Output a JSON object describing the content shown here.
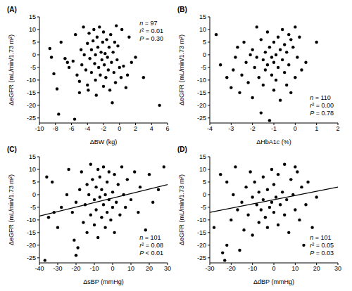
{
  "chart_data": [
    {
      "type": "scatter",
      "title": "(A)",
      "x_label": "ΔBW (kg)",
      "y_label": "ΔeGFR (mL/min/1.73 m²)",
      "color": "#000000",
      "marker": "circle",
      "xlim": [
        -10,
        6
      ],
      "xticks": [
        -10,
        -8,
        -6,
        -4,
        -2,
        0,
        2,
        4,
        6
      ],
      "ylim": [
        -27,
        15
      ],
      "yticks": [
        -25,
        -20,
        -15,
        -10,
        -5,
        0,
        5,
        10,
        15
      ],
      "annotations": [
        "n = 97",
        "r² = 0.01",
        "P = 0.30"
      ],
      "x": [
        -8.7,
        -8.2,
        -8.5,
        -7.8,
        -7.6,
        -7.3,
        -6.8,
        -6.5,
        -6.3,
        -5.8,
        -5.6,
        -5.5,
        -5.3,
        -5,
        -5,
        -4.8,
        -4.7,
        -4.5,
        -4.4,
        -4.2,
        -4,
        -4,
        -3.9,
        -3.8,
        -3.7,
        -3.5,
        -3.5,
        -3.3,
        -3.2,
        -3.1,
        -3,
        -3,
        -2.9,
        -2.8,
        -2.7,
        -2.6,
        -2.5,
        -2.4,
        -2.3,
        -2.2,
        -2.1,
        -2,
        -2,
        -1.9,
        -1.8,
        -1.7,
        -1.6,
        -1.5,
        -1.4,
        -1.3,
        -1.2,
        -1.1,
        -1,
        -0.9,
        -0.8,
        -0.7,
        -0.6,
        -0.5,
        -0.4,
        -0.3,
        -0.2,
        0,
        0.2,
        0.3,
        0.5,
        0.8,
        1,
        1.2,
        1.5,
        2,
        3,
        5
      ],
      "y": [
        2.5,
        -7.5,
        -1,
        -13.5,
        -23.5,
        5,
        -1.5,
        -3,
        -5,
        -2.5,
        -25.5,
        8,
        -8,
        -15,
        -10.5,
        2,
        -4,
        11,
        0,
        -6,
        4.5,
        -12,
        -14,
        8.5,
        -1.5,
        2,
        -7,
        5.5,
        10,
        -3.5,
        -10,
        0,
        -16,
        7,
        3,
        -5,
        11,
        -8,
        1,
        -2,
        5,
        -12.5,
        9,
        -4,
        0.5,
        -9,
        6,
        -1,
        -6,
        3,
        -14,
        8,
        -3,
        -19,
        1,
        -7,
        5,
        -11,
        11.5,
        -2,
        3.5,
        -5,
        -9,
        10,
        -4.5,
        -13,
        -8,
        7,
        -3,
        -1,
        -9,
        -20
      ]
    },
    {
      "type": "scatter",
      "title": "(B)",
      "x_label": "ΔHbA1c (%)",
      "y_label": "ΔeGFR (mL/min/1.73 m²)",
      "color": "#000000",
      "marker": "circle",
      "xlim": [
        -4,
        2
      ],
      "xticks": [
        -4,
        -3,
        -2,
        -1,
        0,
        1,
        2
      ],
      "ylim": [
        -27,
        15
      ],
      "yticks": [
        -25,
        -20,
        -15,
        -10,
        -5,
        0,
        5,
        10,
        15
      ],
      "annotations": [
        "n = 110",
        "r² = 0.00",
        "P = 0.78"
      ],
      "x": [
        -3.7,
        -3.5,
        -3.2,
        -3,
        -2.9,
        -2.8,
        -2.7,
        -2.6,
        -2.5,
        -2.4,
        -2.3,
        -2.2,
        -2.1,
        -2,
        -2,
        -1.9,
        -1.8,
        -1.8,
        -1.7,
        -1.6,
        -1.6,
        -1.5,
        -1.5,
        -1.4,
        -1.4,
        -1.3,
        -1.3,
        -1.2,
        -1.2,
        -1.1,
        -1.1,
        -1,
        -1,
        -1,
        -0.9,
        -0.9,
        -0.8,
        -0.8,
        -0.7,
        -0.7,
        -0.6,
        -0.6,
        -0.5,
        -0.5,
        -0.4,
        -0.4,
        -0.3,
        -0.3,
        -0.2,
        -0.2,
        -0.1,
        0,
        0,
        0.1,
        0.2,
        0.3,
        0.5,
        1
      ],
      "y": [
        8,
        -4,
        -9,
        -13,
        -6,
        -1,
        3,
        -15,
        -8,
        5,
        -3,
        -11,
        0,
        2,
        -17,
        -5,
        11,
        -1,
        -9,
        6,
        -23,
        -2,
        -12,
        1,
        -6,
        9,
        -4,
        -26,
        3,
        -8,
        -1,
        5,
        -14,
        -3,
        0,
        -10,
        7,
        -5,
        2,
        -18,
        -2,
        10,
        4,
        -7,
        -12,
        1,
        8,
        -4,
        6,
        -15,
        3,
        -9,
        11,
        -1,
        7,
        -6,
        -3,
        5
      ]
    },
    {
      "type": "scatter",
      "title": "(C)",
      "x_label": "ΔsBP (mmHg)",
      "y_label": "ΔeGFR (mL/min/1.73 m²)",
      "color": "#000000",
      "marker": "circle",
      "xlim": [
        -40,
        30
      ],
      "xticks": [
        -40,
        -30,
        -20,
        -10,
        0,
        10,
        20,
        30
      ],
      "ylim": [
        -27,
        15
      ],
      "yticks": [
        -25,
        -20,
        -15,
        -10,
        -5,
        0,
        5,
        10,
        15
      ],
      "annotations": [
        "n = 101",
        "r² = 0.08",
        "P < 0.01"
      ],
      "fit_line": {
        "x": [
          -40,
          30
        ],
        "y": [
          -8.5,
          4
        ]
      },
      "x": [
        -37,
        -36,
        -35,
        -33,
        -32,
        -30,
        -28,
        -25,
        -24,
        -22,
        -21,
        -20,
        -20,
        -19,
        -18,
        -17,
        -16,
        -15,
        -14,
        -14,
        -13,
        -12,
        -12,
        -11,
        -10,
        -10,
        -9,
        -9,
        -8,
        -8,
        -7,
        -7,
        -6,
        -6,
        -5,
        -5,
        -4,
        -4,
        -3,
        -3,
        -2,
        -2,
        -1,
        0,
        0,
        1,
        1,
        2,
        3,
        4,
        5,
        6,
        7,
        8,
        10,
        12,
        14,
        15,
        18,
        20,
        22,
        25,
        28
      ],
      "y": [
        -26,
        7,
        -9,
        5,
        -7,
        -13,
        -5,
        0,
        10,
        -7,
        -18,
        -24,
        -3,
        -21,
        2,
        9,
        -11,
        -4,
        4,
        -15,
        0,
        12,
        -8,
        6,
        -2,
        -12,
        3,
        -6,
        10,
        -17,
        -1,
        7,
        -9,
        2,
        -4,
        11,
        0,
        -13,
        5,
        -7,
        -2,
        9,
        -10,
        1,
        -5,
        8,
        -15,
        -3,
        4,
        -8,
        11,
        0,
        -5,
        6,
        -2,
        9,
        -7,
        3,
        -14,
        8,
        -3,
        2,
        11
      ]
    },
    {
      "type": "scatter",
      "title": "(D)",
      "x_label": "ΔdBP (mmHg)",
      "y_label": "ΔeGFR (mL/min/1.73 m²)",
      "color": "#000000",
      "marker": "circle",
      "xlim": [
        -30,
        30
      ],
      "xticks": [
        -30,
        -20,
        -10,
        0,
        10,
        20,
        30
      ],
      "ylim": [
        -27,
        15
      ],
      "yticks": [
        -25,
        -20,
        -15,
        -10,
        -5,
        0,
        5,
        10,
        15
      ],
      "annotations": [
        "n = 101",
        "r² = 0.05",
        "P = 0.03"
      ],
      "fit_line": {
        "x": [
          -30,
          30
        ],
        "y": [
          -7,
          3
        ]
      },
      "x": [
        -28,
        -25,
        -24,
        -23,
        -22,
        -22,
        -20,
        -19,
        -18,
        -17,
        -15,
        -14,
        -13,
        -12,
        -11,
        -10,
        -10,
        -9,
        -8,
        -7,
        -7,
        -6,
        -5,
        -5,
        -4,
        -3,
        -3,
        -2,
        -1,
        -1,
        0,
        0,
        1,
        2,
        2,
        3,
        4,
        5,
        5,
        6,
        7,
        8,
        9,
        10,
        11,
        12,
        13,
        14,
        15,
        16,
        18,
        20,
        10,
        -16
      ],
      "y": [
        -13,
        8,
        -23,
        -26,
        -20,
        5,
        -10,
        0,
        11,
        -6,
        -3,
        -14,
        3,
        -8,
        9,
        -1,
        -16,
        5,
        -4,
        1,
        -11,
        -6,
        7,
        -2,
        -9,
        2,
        -13,
        -5,
        10,
        -3,
        -7,
        4,
        -1,
        8,
        -12,
        -4,
        1,
        12,
        -8,
        -2,
        -15,
        6,
        0,
        -6,
        9,
        -10,
        3,
        -20,
        -4,
        5,
        -13,
        -1,
        11,
        -22
      ]
    }
  ]
}
